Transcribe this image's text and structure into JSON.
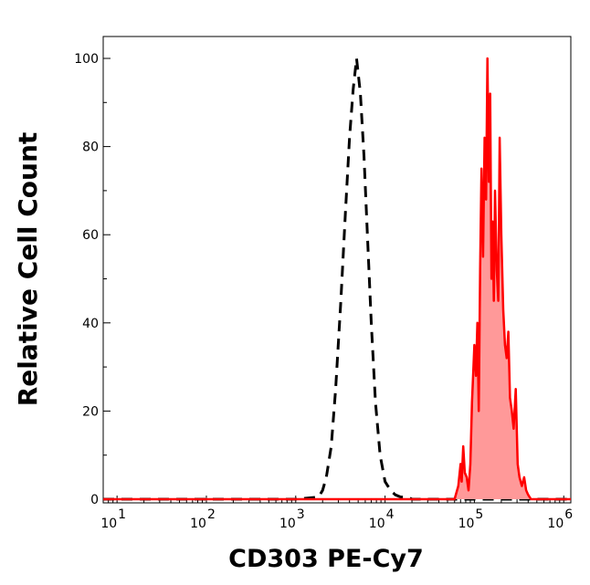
{
  "chart_data": {
    "type": "area",
    "title": "",
    "xlabel": "CD303 PE-Cy7",
    "ylabel": "Relative Cell Count",
    "x_scale": "log",
    "xlim": [
      7,
      1200000
    ],
    "ylim": [
      0,
      104
    ],
    "y_ticks": [
      0,
      20,
      40,
      60,
      80,
      100
    ],
    "x_ticks": [
      {
        "value": 10,
        "base": "10",
        "exp": "1"
      },
      {
        "value": 100,
        "base": "10",
        "exp": "2"
      },
      {
        "value": 1000,
        "base": "10",
        "exp": "3"
      },
      {
        "value": 10000,
        "base": "10",
        "exp": "4"
      },
      {
        "value": 100000,
        "base": "10",
        "exp": "5"
      },
      {
        "value": 1000000,
        "base": "10",
        "exp": "6"
      }
    ],
    "grid": false,
    "series": [
      {
        "style": "dashed",
        "color": "#000000",
        "x": [
          7,
          1000,
          1800,
          2000,
          2200,
          2500,
          2800,
          3200,
          3600,
          4000,
          4400,
          4800,
          5300,
          5800,
          6400,
          7000,
          7800,
          8800,
          10000,
          11500,
          13000,
          15000,
          18000,
          20000,
          1200000
        ],
        "y": [
          0,
          0,
          0.5,
          2,
          5,
          12,
          25,
          45,
          65,
          82,
          93,
          100,
          92,
          78,
          58,
          40,
          22,
          10,
          4,
          2,
          1,
          0.5,
          0.5,
          0,
          0
        ]
      },
      {
        "style": "filled",
        "color": "#ff0000",
        "fill": "#ff9999",
        "x": [
          7,
          60000,
          66000,
          70000,
          72000,
          75000,
          78000,
          82000,
          86000,
          90000,
          94000,
          100000,
          104000,
          108000,
          112000,
          116000,
          120000,
          125000,
          130000,
          135000,
          140000,
          145000,
          150000,
          155000,
          160000,
          165000,
          170000,
          178000,
          185000,
          192000,
          200000,
          210000,
          220000,
          230000,
          240000,
          250000,
          262000,
          275000,
          290000,
          305000,
          320000,
          340000,
          360000,
          380000,
          400000,
          430000,
          1200000
        ],
        "y": [
          0,
          0,
          3,
          8,
          4,
          12,
          6,
          5,
          2,
          8,
          22,
          35,
          28,
          40,
          20,
          52,
          75,
          55,
          82,
          68,
          100,
          72,
          92,
          50,
          63,
          45,
          70,
          52,
          45,
          82,
          60,
          43,
          35,
          32,
          38,
          23,
          20,
          16,
          25,
          8,
          5,
          3,
          5,
          2,
          1,
          0,
          0
        ]
      }
    ]
  }
}
